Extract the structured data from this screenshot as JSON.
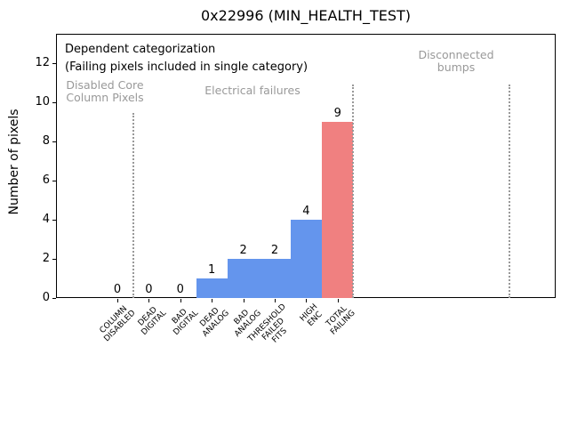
{
  "window": {
    "title": "0x22996 (MIN_HEALTH_TEST)"
  },
  "chart_data": {
    "type": "bar",
    "title": "0x22996 (MIN_HEALTH_TEST)",
    "xlabel": "",
    "ylabel": "Number of pixels",
    "ylim": [
      0,
      13.5
    ],
    "yticks": [
      0,
      2,
      4,
      6,
      8,
      10,
      12
    ],
    "grid": false,
    "legend": "none",
    "categories": [
      "COLUMN DISABLED",
      "DEAD DIGITAL",
      "BAD DIGITAL",
      "DEAD ANALOG",
      "BAD ANALOG",
      "THRESHOLD FAILED FITS",
      "HIGH ENC",
      "TOTAL FAILING"
    ],
    "category_label_lines": [
      [
        "COLUMN",
        "DISABLED"
      ],
      [
        "DEAD",
        "DIGITAL"
      ],
      [
        "BAD",
        "DIGITAL"
      ],
      [
        "DEAD",
        "ANALOG"
      ],
      [
        "BAD",
        "ANALOG"
      ],
      [
        "THRESHOLD",
        "FAILED",
        "FITS"
      ],
      [
        "HIGH",
        "ENC"
      ],
      [
        "TOTAL",
        "FAILING"
      ]
    ],
    "values": [
      0,
      0,
      0,
      1,
      2,
      2,
      4,
      9
    ],
    "bar_value_labels": [
      "0",
      "0",
      "0",
      "1",
      "2",
      "2",
      "4",
      "9"
    ],
    "bar_colors": [
      "#6495ED",
      "#6495ED",
      "#6495ED",
      "#6495ED",
      "#6495ED",
      "#6495ED",
      "#6495ED",
      "#F08080"
    ],
    "annotations": {
      "dependent_note": [
        "Dependent categorization",
        "(Failing pixels included in single category)"
      ],
      "region_labels": [
        {
          "lines": [
            "Disabled Core",
            "Column Pixels"
          ]
        },
        {
          "lines": [
            "Electrical failures"
          ]
        },
        {
          "lines": [
            "Disconnected",
            "bumps"
          ]
        }
      ],
      "region_label_color": "#999999"
    },
    "separators": {
      "style": "dotted",
      "color": "#999999",
      "count": 3
    }
  }
}
